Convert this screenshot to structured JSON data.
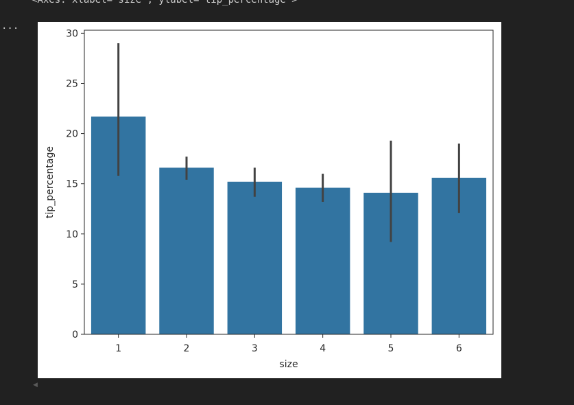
{
  "output": {
    "repr_text": "<Axes: xlabel='size', ylabel='tip_percentage'>",
    "ellipsis": "...",
    "scroll_arrow_icon": "scroll-left-icon"
  },
  "chart_data": {
    "type": "bar",
    "categories": [
      "1",
      "2",
      "3",
      "4",
      "5",
      "6"
    ],
    "values": [
      21.7,
      16.6,
      15.2,
      14.6,
      14.1,
      15.6
    ],
    "error_low": [
      15.8,
      15.4,
      13.7,
      13.2,
      9.2,
      12.1
    ],
    "error_high": [
      29.0,
      17.7,
      16.6,
      16.0,
      19.3,
      19.0
    ],
    "xlabel": "size",
    "ylabel": "tip_percentage",
    "ylim": [
      0,
      30.3
    ],
    "yticks": [
      0,
      5,
      10,
      15,
      20,
      25,
      30
    ],
    "bar_color": "#3274a1",
    "error_color": "#424242",
    "grid": false
  }
}
